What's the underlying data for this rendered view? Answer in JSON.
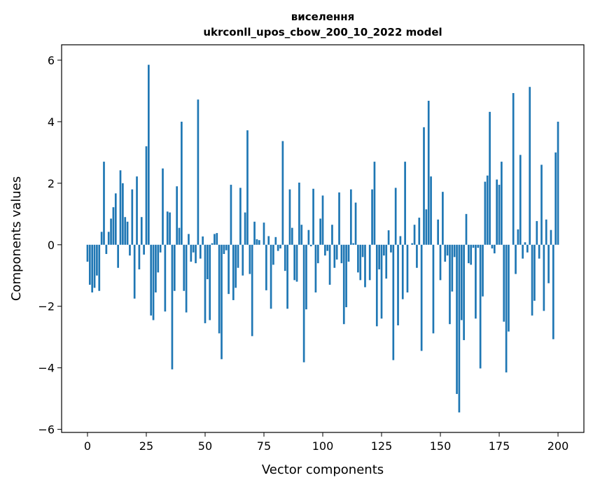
{
  "chart_data": {
    "type": "bar",
    "title": "виселення",
    "subtitle": "ukrconll_upos_cbow_200_10_2022 model",
    "xlabel": "Vector components",
    "ylabel": "Components values",
    "xlim": [
      -11,
      211
    ],
    "ylim": [
      -6.1,
      6.5
    ],
    "xticks": [
      0,
      25,
      50,
      75,
      100,
      125,
      150,
      175,
      200
    ],
    "yticks": [
      -6,
      -4,
      -2,
      0,
      2,
      4,
      6
    ],
    "grid": false,
    "color": "#1f77b4",
    "x_start": 0,
    "values": [
      -0.55,
      -1.3,
      -1.55,
      -1.4,
      -1.0,
      -1.5,
      0.42,
      2.7,
      -0.3,
      0.42,
      0.85,
      1.22,
      1.67,
      -0.75,
      2.42,
      2.0,
      0.9,
      0.75,
      -0.35,
      1.8,
      -1.75,
      2.22,
      -0.8,
      0.9,
      -0.32,
      3.2,
      5.85,
      -2.3,
      -2.45,
      -1.55,
      -0.9,
      -0.25,
      2.48,
      -2.17,
      1.08,
      1.05,
      -4.05,
      -1.5,
      1.9,
      0.55,
      4.0,
      -1.5,
      -2.2,
      0.35,
      -0.55,
      -0.25,
      -0.6,
      4.72,
      -0.45,
      0.27,
      -2.55,
      -1.12,
      -2.45,
      0.05,
      0.35,
      0.38,
      -2.88,
      -3.72,
      -0.3,
      -0.18,
      -1.6,
      1.95,
      -1.8,
      -1.4,
      -0.75,
      1.85,
      -1.0,
      1.05,
      3.72,
      -0.95,
      -2.97,
      0.75,
      0.18,
      0.15,
      0.0,
      0.72,
      -1.48,
      0.28,
      -2.08,
      -0.65,
      0.25,
      -0.2,
      -0.12,
      3.37,
      -0.85,
      -2.08,
      1.8,
      0.55,
      -1.15,
      -1.2,
      2.02,
      0.65,
      -3.82,
      -2.1,
      0.48,
      -0.05,
      1.82,
      -1.55,
      -0.6,
      0.85,
      1.6,
      -0.35,
      -0.2,
      -1.3,
      0.65,
      -0.75,
      -0.48,
      1.7,
      -0.6,
      -2.58,
      -2.03,
      -0.55,
      1.8,
      0.05,
      1.37,
      -0.9,
      -1.15,
      -0.4,
      -1.38,
      0.0,
      -1.15,
      1.8,
      2.7,
      -2.65,
      -0.8,
      -2.4,
      -0.35,
      -1.1,
      0.47,
      -0.25,
      -3.75,
      1.85,
      -2.62,
      0.28,
      -1.77,
      2.7,
      -1.55,
      0.0,
      0.05,
      0.65,
      -0.75,
      0.88,
      -3.45,
      3.82,
      1.15,
      4.68,
      2.22,
      -2.88,
      0.0,
      0.82,
      -1.15,
      1.72,
      -0.55,
      -0.35,
      -2.58,
      -1.52,
      -0.4,
      -4.85,
      -5.45,
      -2.45,
      -3.1,
      1.0,
      -0.6,
      -0.65,
      -0.1,
      -2.4,
      -0.1,
      -4.02,
      -1.68,
      2.05,
      2.25,
      4.32,
      -0.12,
      -0.28,
      2.12,
      1.95,
      2.7,
      -2.5,
      -4.15,
      -2.82,
      0.0,
      4.93,
      -0.95,
      0.5,
      2.92,
      -0.45,
      0.08,
      -0.25,
      5.13,
      -2.3,
      -1.82,
      0.77,
      -0.45,
      2.6,
      -2.15,
      0.82,
      -1.25,
      0.48,
      -3.07,
      3.0,
      4.0
    ]
  }
}
